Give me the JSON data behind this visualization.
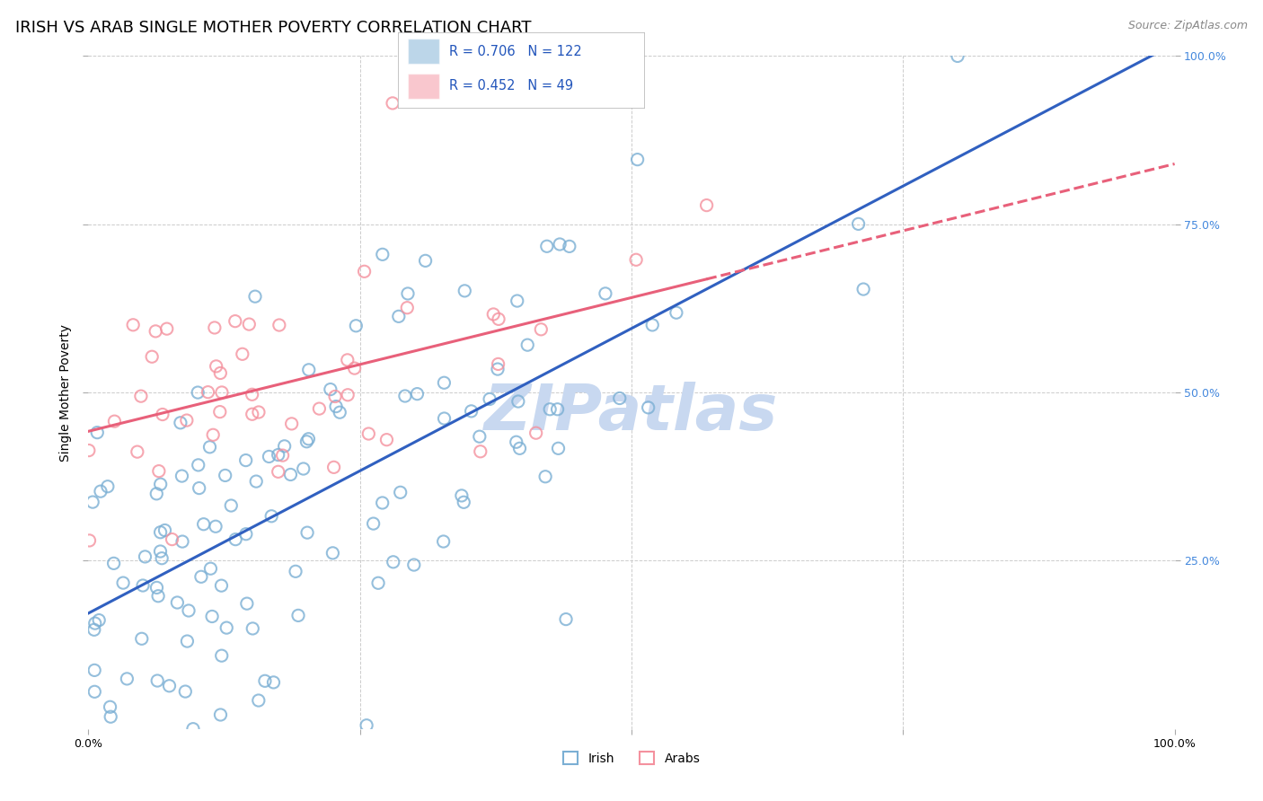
{
  "title": "IRISH VS ARAB SINGLE MOTHER POVERTY CORRELATION CHART",
  "source": "Source: ZipAtlas.com",
  "ylabel": "Single Mother Poverty",
  "xlim": [
    0,
    1
  ],
  "ylim": [
    0,
    1
  ],
  "irish_color": "#7BAFD4",
  "arab_color": "#F4919E",
  "irish_R": 0.706,
  "irish_N": 122,
  "arab_R": 0.452,
  "arab_N": 49,
  "irish_line_color": "#3060C0",
  "arab_line_color": "#E8607A",
  "watermark": "ZIPatlas",
  "watermark_color": "#C8D8F0",
  "legend_R_color": "#2255BB",
  "background_color": "#FFFFFF",
  "grid_color": "#CCCCCC",
  "right_tick_color": "#4488DD",
  "title_fontsize": 13,
  "axis_label_fontsize": 10,
  "tick_fontsize": 9
}
